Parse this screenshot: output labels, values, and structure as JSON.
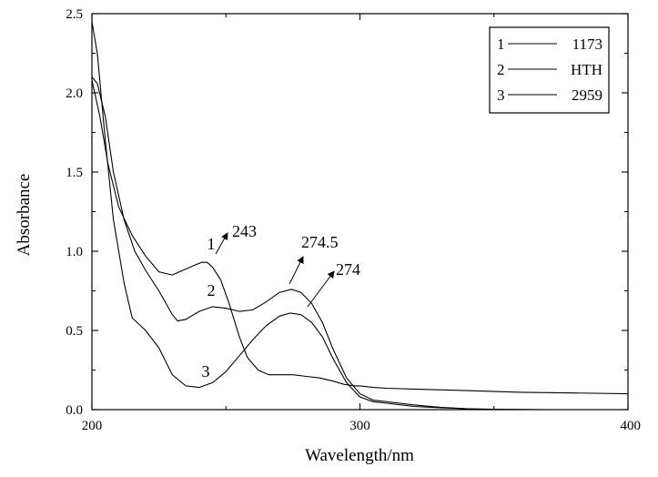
{
  "chart_data": {
    "type": "line",
    "xlabel": "Wavelength/nm",
    "ylabel": "Absorbance",
    "xlim": [
      200,
      400
    ],
    "ylim": [
      0,
      2.5
    ],
    "x_ticks": [
      200,
      300,
      400
    ],
    "y_ticks": [
      "0.0",
      "0.5",
      "1.0",
      "1.5",
      "2.0",
      "2.5"
    ],
    "grid": false,
    "legend_position": "top-right",
    "legend": [
      {
        "id": "1",
        "name": "1173"
      },
      {
        "id": "2",
        "name": "HTH"
      },
      {
        "id": "3",
        "name": "2959"
      }
    ],
    "series": [
      {
        "id": "1",
        "name": "1173",
        "x": [
          200,
          203,
          206,
          210,
          215,
          220,
          225,
          230,
          234,
          238,
          241,
          243,
          245,
          248,
          251,
          255,
          258,
          262,
          266,
          270,
          275,
          280,
          285,
          290,
          294,
          298,
          300,
          305,
          310,
          320,
          340,
          360,
          380,
          400
        ],
        "y": [
          2.08,
          1.85,
          1.55,
          1.28,
          1.1,
          0.97,
          0.87,
          0.85,
          0.88,
          0.91,
          0.93,
          0.93,
          0.9,
          0.82,
          0.68,
          0.46,
          0.33,
          0.25,
          0.22,
          0.22,
          0.22,
          0.21,
          0.2,
          0.18,
          0.16,
          0.15,
          0.15,
          0.14,
          0.135,
          0.13,
          0.12,
          0.11,
          0.105,
          0.1
        ]
      },
      {
        "id": "2",
        "name": "HTH",
        "x": [
          200,
          202,
          205,
          208,
          212,
          216,
          220,
          225,
          230,
          232,
          235,
          240,
          245,
          250,
          255,
          260,
          265,
          270,
          274.5,
          278,
          282,
          286,
          290,
          295,
          300,
          305,
          310,
          320,
          330,
          340,
          350
        ],
        "y": [
          2.1,
          2.06,
          1.85,
          1.5,
          1.2,
          1.0,
          0.88,
          0.75,
          0.6,
          0.56,
          0.57,
          0.62,
          0.65,
          0.64,
          0.62,
          0.63,
          0.68,
          0.74,
          0.76,
          0.74,
          0.67,
          0.55,
          0.38,
          0.2,
          0.1,
          0.06,
          0.05,
          0.03,
          0.015,
          0.005,
          0.0
        ]
      },
      {
        "id": "3",
        "name": "2959",
        "x": [
          200,
          202,
          205,
          208,
          212,
          215,
          220,
          225,
          230,
          235,
          240,
          245,
          250,
          255,
          260,
          265,
          270,
          274,
          278,
          282,
          286,
          290,
          295,
          300,
          305,
          310,
          320,
          330,
          340,
          350,
          360,
          370
        ],
        "y": [
          2.45,
          2.25,
          1.7,
          1.2,
          0.8,
          0.58,
          0.5,
          0.39,
          0.22,
          0.15,
          0.14,
          0.17,
          0.24,
          0.34,
          0.44,
          0.53,
          0.59,
          0.61,
          0.6,
          0.55,
          0.46,
          0.32,
          0.17,
          0.08,
          0.05,
          0.04,
          0.02,
          0.012,
          0.006,
          0.003,
          0.001,
          0.0
        ]
      }
    ],
    "annotations": [
      {
        "text": "243",
        "series_label": "1",
        "at_x": 243,
        "at_y": 0.93
      },
      {
        "text": "274.5",
        "series_label": "2",
        "at_x": 274.5,
        "at_y": 0.76
      },
      {
        "text": "274",
        "series_label": "3",
        "at_x": 274,
        "at_y": 0.61
      }
    ]
  }
}
